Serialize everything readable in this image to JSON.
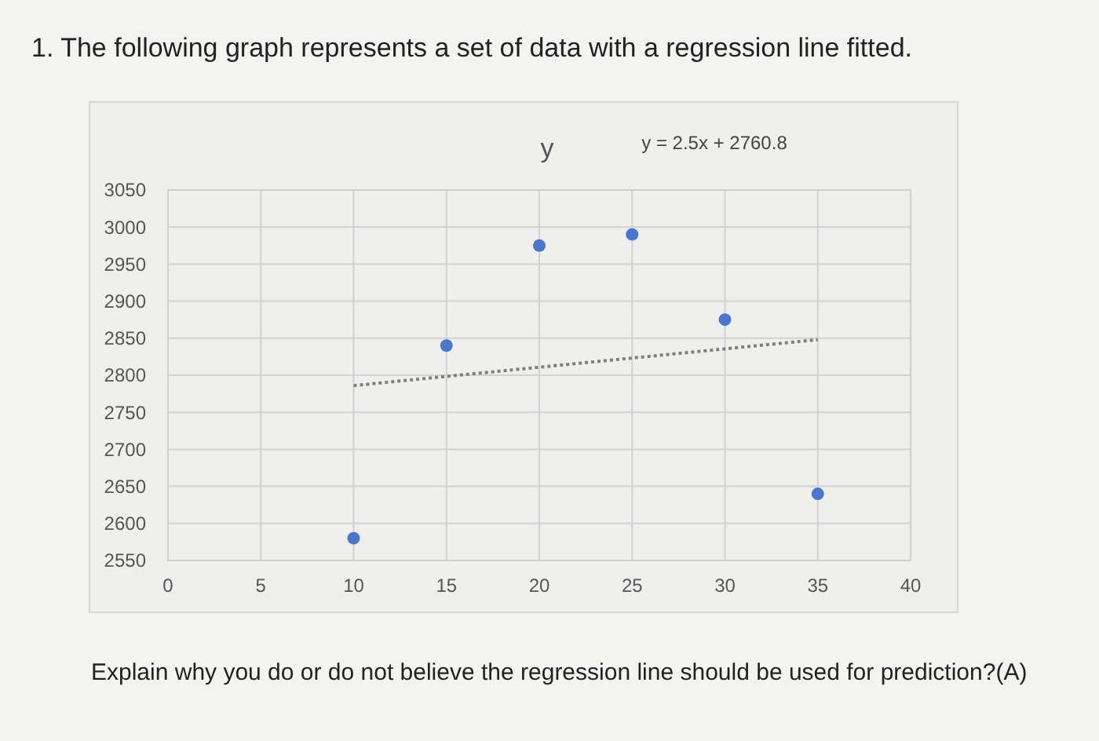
{
  "chart_data": {
    "type": "scatter",
    "title": "y",
    "annotations": [
      "1.  The following graph represents a set of data with a regression line fitted.",
      "y = 2.5x + 2760.8",
      "Explain why you do or do not believe the regression line should be used for prediction?(A)"
    ],
    "xlim": [
      0,
      40
    ],
    "xticks": [
      0,
      5,
      10,
      15,
      20,
      25,
      30,
      35,
      40
    ],
    "ylim": [
      2550,
      3050
    ],
    "yticks": [
      2550,
      2600,
      2650,
      2700,
      2750,
      2800,
      2850,
      2900,
      2950,
      3000,
      3050
    ],
    "grid": true,
    "series": [
      {
        "x": [
          10,
          15,
          20,
          25,
          30,
          35
        ],
        "values": [
          2580,
          2840,
          2975,
          2990,
          2875,
          2640
        ],
        "color": "#4a76d0",
        "marker": "circle"
      },
      {
        "type": "line",
        "x": [
          10,
          35
        ],
        "values": [
          2786,
          2848
        ],
        "color": "#7f7f7f",
        "line_style": "dotted"
      }
    ]
  }
}
